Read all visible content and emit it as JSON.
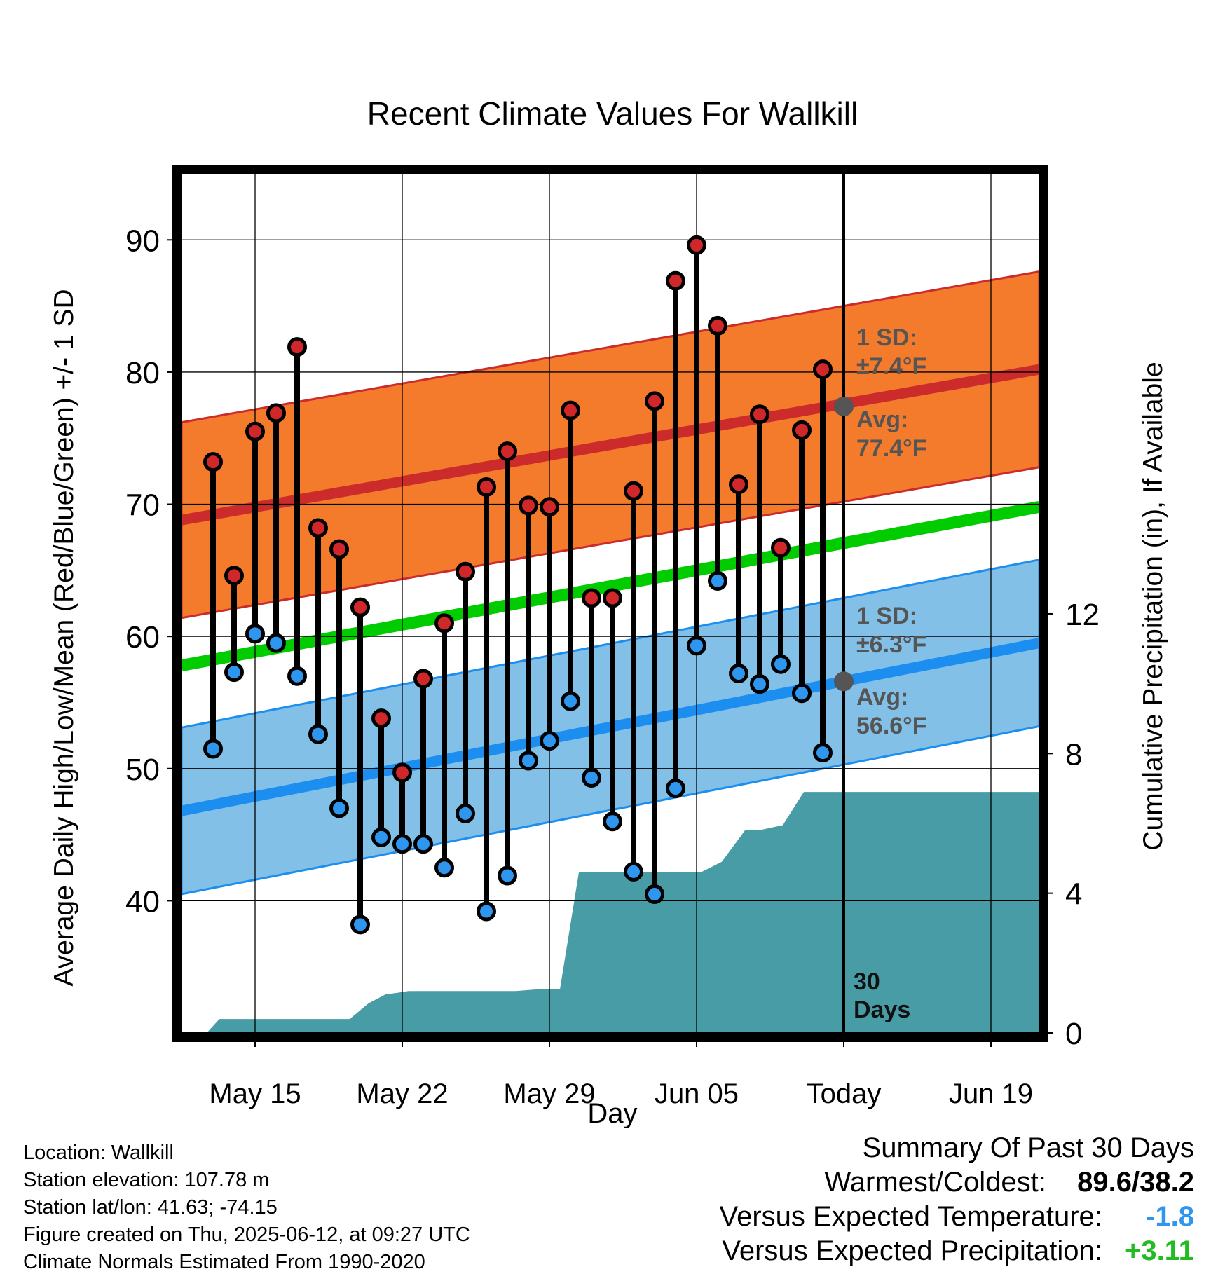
{
  "chart_data": {
    "type": "range-dot",
    "title": "Recent Climate Values For Wallkill",
    "xlabel": "Day",
    "ylabel_left": "Average Daily High/Low/Mean (Red/Blue/Green) +/- 1 SD",
    "ylabel_right": "Cumulative Precipitation (in), If Available",
    "x_tick_labels": [
      "May 15",
      "May 22",
      "May 29",
      "Jun 05",
      "Today",
      "Jun 19"
    ],
    "x_tick_days": [
      3,
      10,
      17,
      24,
      31,
      38
    ],
    "xlim_days": [
      -0.5,
      40.3
    ],
    "ylim_temp": [
      30,
      95
    ],
    "ylim_precip": [
      0,
      24.6
    ],
    "y_ticks_temp": [
      40,
      50,
      60,
      70,
      80,
      90
    ],
    "y_ticks_precip": [
      0,
      4,
      8,
      12
    ],
    "grid": true,
    "today_index": 31,
    "today_label_line1": "30",
    "today_label_line2": "Days",
    "daily": {
      "day_index": [
        1,
        2,
        3,
        4,
        5,
        6,
        7,
        8,
        9,
        10,
        11,
        12,
        13,
        14,
        15,
        16,
        17,
        18,
        19,
        20,
        21,
        22,
        23,
        24,
        25,
        26,
        27,
        28,
        29,
        30
      ],
      "high": [
        73.2,
        64.6,
        75.5,
        76.9,
        81.9,
        68.2,
        66.6,
        62.2,
        53.8,
        49.7,
        56.8,
        61.0,
        64.9,
        71.3,
        74.0,
        69.9,
        69.8,
        77.1,
        62.9,
        62.9,
        71.0,
        77.8,
        86.9,
        89.6,
        83.5,
        71.5,
        76.8,
        66.7,
        75.6,
        80.2
      ],
      "low": [
        51.5,
        57.3,
        60.2,
        59.5,
        57.0,
        52.6,
        47.0,
        38.2,
        44.8,
        44.3,
        44.3,
        42.5,
        46.6,
        39.2,
        41.9,
        50.6,
        52.1,
        55.1,
        49.3,
        46.0,
        42.2,
        40.5,
        48.5,
        59.3,
        64.2,
        57.2,
        56.4,
        57.9,
        55.7,
        51.2
      ]
    },
    "normal_high": {
      "start": 68.8,
      "end": 80.2,
      "sd": 7.4
    },
    "normal_low": {
      "start": 46.8,
      "end": 59.5,
      "sd": 6.3
    },
    "normal_mean": {
      "start": 57.8,
      "end": 69.8
    },
    "precip_cumulative": {
      "day": [
        0.7,
        1.3,
        7.5,
        8.4,
        9.2,
        9.8,
        10.3,
        15.4,
        16.5,
        17.5,
        18.4,
        19.3,
        20.3,
        24.2,
        25.2,
        26.3,
        27.1,
        28.1,
        29.1,
        29.7,
        40.3
      ],
      "inches": [
        0,
        0.4,
        0.4,
        0.85,
        1.1,
        1.15,
        1.2,
        1.2,
        1.25,
        1.25,
        4.6,
        4.6,
        4.6,
        4.6,
        4.9,
        5.8,
        5.82,
        5.95,
        6.9,
        6.9,
        6.9
      ]
    },
    "annotations": {
      "high_sd_line1": "1 SD:",
      "high_sd_line2": "±7.4°F",
      "high_avg_line1": "Avg:",
      "high_avg_line2": "77.4°F",
      "low_sd_line1": "1 SD:",
      "low_sd_line2": "±6.3°F",
      "low_avg_line1": "Avg:",
      "low_avg_line2": "56.6°F",
      "high_avg_value": 77.4,
      "low_avg_value": 56.6
    },
    "colors": {
      "high_band": "#f47a2c",
      "high_line": "#cc2b2b",
      "low_band": "#82c0e7",
      "low_line": "#1c8ef0",
      "mean_line": "#00cc00",
      "precip": "#489ca5",
      "high_dot": "#d0282a",
      "low_dot": "#2f96f0",
      "annotation": "#555555"
    }
  },
  "footer": {
    "location": "Location: Wallkill",
    "elevation": "Station elevation: 107.78 m",
    "latlon": "Station lat/lon: 41.63; -74.15",
    "created": "Figure created on Thu, 2025-06-12, at 09:27 UTC",
    "normals": "Climate Normals Estimated From 1990-2020"
  },
  "summary": {
    "heading": "Summary Of Past 30 Days",
    "warmest_coldest_label": "Warmest/Coldest:",
    "warmest_coldest_value": "89.6/38.2",
    "temp_label": "Versus Expected Temperature:",
    "temp_value": "-1.8",
    "temp_color": "#2f96f0",
    "precip_label": "Versus Expected Precipitation:",
    "precip_value": "+3.11",
    "precip_color": "#22bb22"
  }
}
